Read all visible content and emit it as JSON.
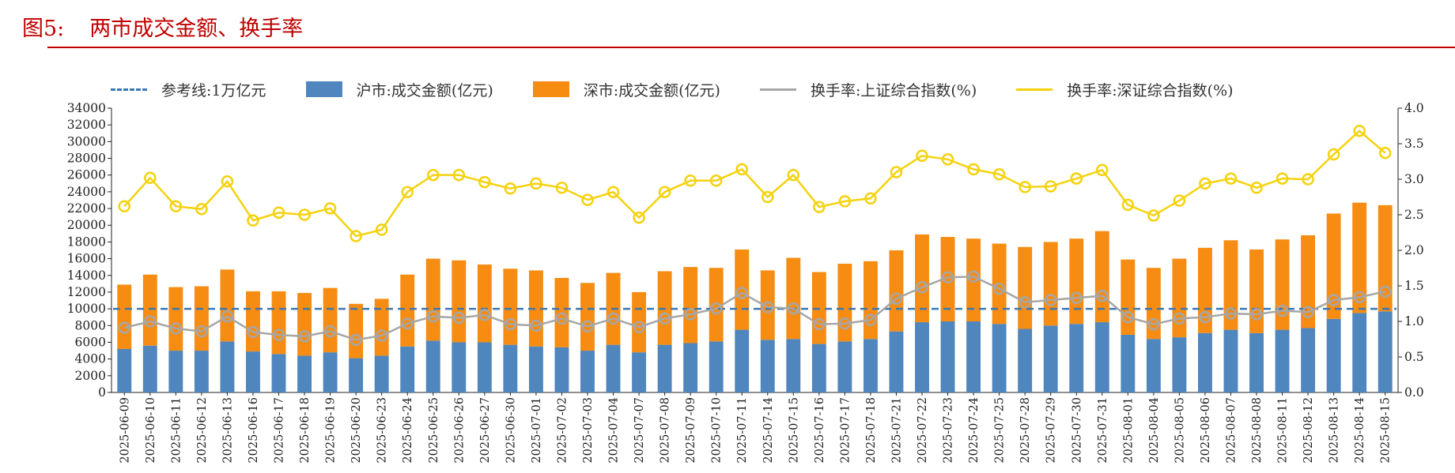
{
  "figure": {
    "number": "图5:",
    "title": "两市成交金额、换手率"
  },
  "colors": {
    "title": "#c00000",
    "sh_bar": "#4f86bd",
    "sz_bar": "#f68c12",
    "sh_rate": "#a6a6a6",
    "sz_rate": "#f5d20e",
    "ref_line": "#3a78b5"
  },
  "chart_data": {
    "type": "bar",
    "stacked": true,
    "categories": [
      "2025-06-09",
      "2025-06-10",
      "2025-06-11",
      "2025-06-12",
      "2025-06-13",
      "2025-06-16",
      "2025-06-17",
      "2025-06-18",
      "2025-06-19",
      "2025-06-20",
      "2025-06-23",
      "2025-06-24",
      "2025-06-25",
      "2025-06-26",
      "2025-06-27",
      "2025-06-30",
      "2025-07-01",
      "2025-07-02",
      "2025-07-03",
      "2025-07-04",
      "2025-07-07",
      "2025-07-08",
      "2025-07-09",
      "2025-07-10",
      "2025-07-11",
      "2025-07-14",
      "2025-07-15",
      "2025-07-16",
      "2025-07-17",
      "2025-07-18",
      "2025-07-21",
      "2025-07-22",
      "2025-07-23",
      "2025-07-24",
      "2025-07-25",
      "2025-07-28",
      "2025-07-29",
      "2025-07-30",
      "2025-07-31",
      "2025-08-01",
      "2025-08-04",
      "2025-08-05",
      "2025-08-06",
      "2025-08-07",
      "2025-08-08",
      "2025-08-11",
      "2025-08-12",
      "2025-08-13",
      "2025-08-14",
      "2025-08-15"
    ],
    "series": [
      {
        "name": "沪市:成交金额(亿元)",
        "kind": "bar",
        "axis": "left",
        "values": [
          5200,
          5600,
          5000,
          5000,
          6100,
          4900,
          4600,
          4400,
          4800,
          4100,
          4400,
          5500,
          6200,
          6000,
          6000,
          5700,
          5500,
          5400,
          5000,
          5700,
          4800,
          5700,
          5900,
          6100,
          7500,
          6300,
          6400,
          5800,
          6100,
          6400,
          7300,
          8400,
          8500,
          8500,
          8200,
          7600,
          8000,
          8200,
          8400,
          6900,
          6400,
          6600,
          7100,
          7500,
          7100,
          7500,
          7700,
          8800,
          9500,
          9700
        ]
      },
      {
        "name": "深市:成交金额(亿元)",
        "kind": "bar",
        "axis": "left",
        "values": [
          7700,
          8500,
          7600,
          7700,
          8600,
          7200,
          7500,
          7500,
          7700,
          6500,
          6800,
          8600,
          9800,
          9800,
          9300,
          9100,
          9100,
          8300,
          8100,
          8600,
          7200,
          8800,
          9100,
          8800,
          9600,
          8300,
          9700,
          8600,
          9300,
          9300,
          9700,
          10500,
          10100,
          9900,
          9600,
          9800,
          10000,
          10200,
          10900,
          9000,
          8500,
          9400,
          10200,
          10700,
          10000,
          10800,
          11100,
          12600,
          13200,
          12700
        ]
      },
      {
        "name": "换手率:上证综合指数(%)",
        "kind": "line",
        "axis": "right",
        "values": [
          0.91,
          1.0,
          0.9,
          0.86,
          1.07,
          0.85,
          0.81,
          0.79,
          0.86,
          0.74,
          0.8,
          0.97,
          1.07,
          1.05,
          1.09,
          0.96,
          0.94,
          1.04,
          0.93,
          1.04,
          0.92,
          1.04,
          1.1,
          1.18,
          1.4,
          1.2,
          1.18,
          0.96,
          0.97,
          1.02,
          1.32,
          1.48,
          1.62,
          1.63,
          1.46,
          1.27,
          1.3,
          1.33,
          1.36,
          1.06,
          0.96,
          1.04,
          1.06,
          1.11,
          1.1,
          1.15,
          1.13,
          1.3,
          1.34,
          1.42
        ]
      },
      {
        "name": "换手率:深证综合指数(%)",
        "kind": "line",
        "axis": "right",
        "values": [
          2.62,
          3.02,
          2.62,
          2.58,
          2.97,
          2.42,
          2.53,
          2.5,
          2.59,
          2.2,
          2.29,
          2.82,
          3.06,
          3.06,
          2.96,
          2.87,
          2.94,
          2.88,
          2.71,
          2.82,
          2.46,
          2.82,
          2.98,
          2.98,
          3.14,
          2.75,
          3.06,
          2.61,
          2.69,
          2.73,
          3.1,
          3.33,
          3.28,
          3.14,
          3.07,
          2.89,
          2.9,
          3.01,
          3.13,
          2.64,
          2.49,
          2.7,
          2.94,
          3.01,
          2.88,
          3.01,
          3.0,
          3.35,
          3.68,
          3.37
        ]
      }
    ],
    "reference_line": {
      "name": "参考线:1万亿元",
      "value": 10000,
      "axis": "left"
    },
    "y_left": {
      "min": 0,
      "max": 34000,
      "step": 2000
    },
    "y_right": {
      "min": 0.0,
      "max": 4.0,
      "step": 0.5
    },
    "grid": false,
    "legend_position": "top"
  }
}
